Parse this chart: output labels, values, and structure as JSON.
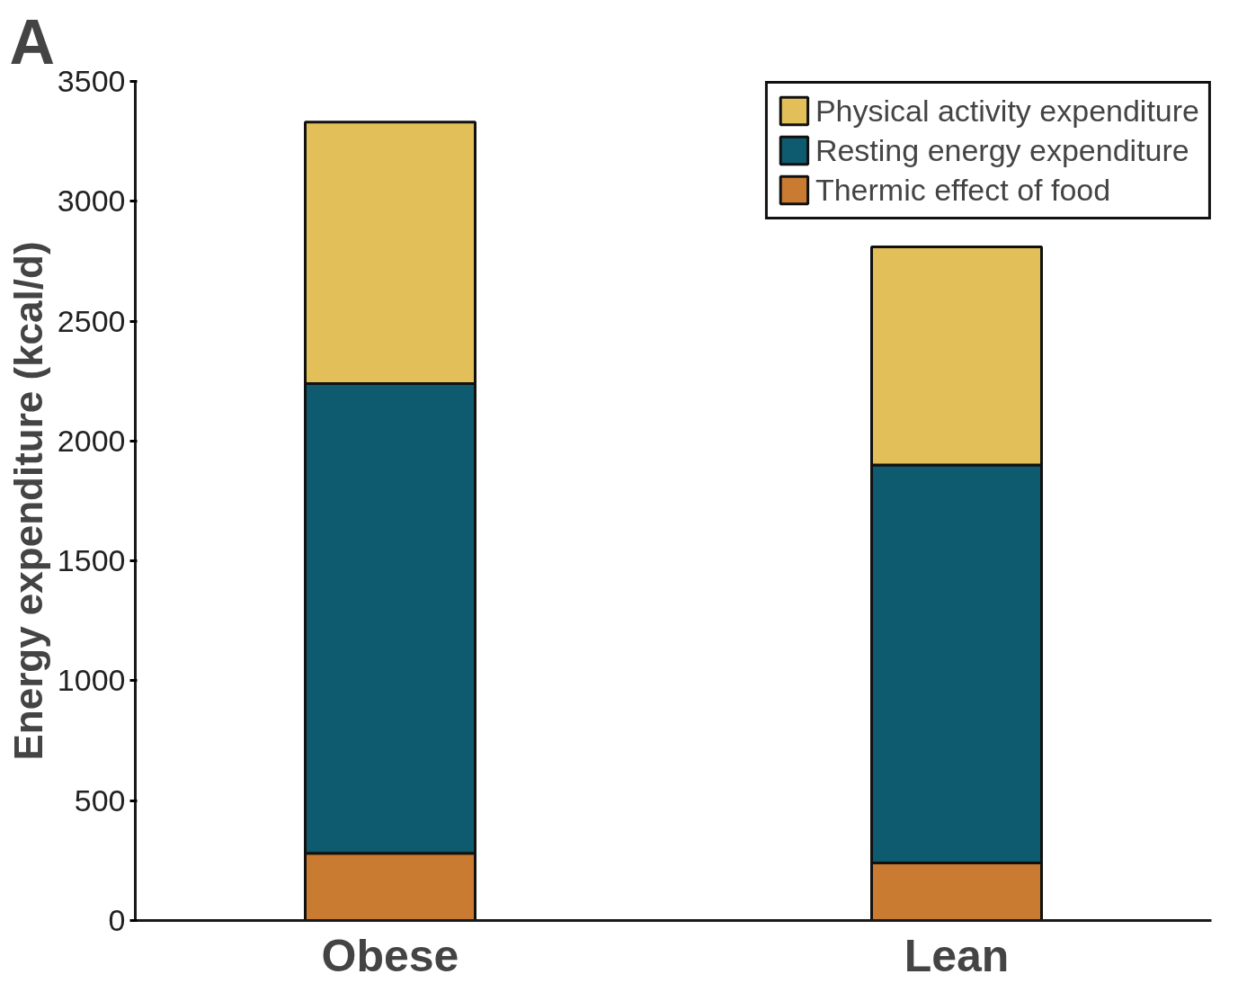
{
  "chart_data": {
    "type": "bar",
    "stacked": true,
    "ylabel": "Energy expenditure (kcal/d)",
    "categories": [
      "Obese",
      "Lean"
    ],
    "series": [
      {
        "name": "Thermic effect of food",
        "color": "#c97c31",
        "values": [
          280,
          240
        ]
      },
      {
        "name": "Resting energy expenditure",
        "color": "#0e5a6e",
        "values": [
          1960,
          1660
        ]
      },
      {
        "name": "Physical activity expenditure",
        "color": "#e3bf5a",
        "values": [
          1090,
          910
        ]
      }
    ],
    "ylim": [
      0,
      3500
    ],
    "yticks": [
      0,
      500,
      1000,
      1500,
      2000,
      2500,
      3000,
      3500
    ],
    "grid": false,
    "legend": "top right",
    "annotations": [
      "A"
    ]
  }
}
